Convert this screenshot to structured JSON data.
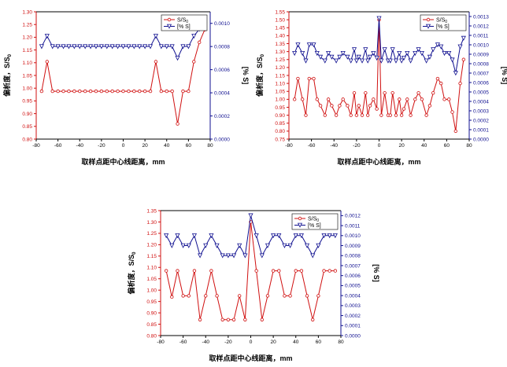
{
  "colors": {
    "red": "#d01010",
    "blue": "#101090",
    "axis": "#000000"
  },
  "chart_data": [
    {
      "type": "line",
      "xlabel": "取样点距中心线距离，mm",
      "ylabel_left": "偏析度，S/S",
      "ylabel_left_sub": "0",
      "ylabel_right": "[% S]",
      "xlim": [
        -80,
        80
      ],
      "xticks": [
        -80,
        -60,
        -40,
        -20,
        0,
        20,
        40,
        60,
        80
      ],
      "ylim_left": [
        0.8,
        1.3
      ],
      "yticks_left": [
        0.8,
        0.85,
        0.9,
        0.95,
        1.0,
        1.05,
        1.1,
        1.15,
        1.2,
        1.25,
        1.3
      ],
      "ylim_right": [
        0.0,
        0.0011
      ],
      "yticks_right": [
        0.0,
        0.0002,
        0.0004,
        0.0006,
        0.0008,
        0.001
      ],
      "legend": [
        "S/S0",
        "[% S]"
      ],
      "legend_position": "top-right",
      "x": [
        -75,
        -70,
        -65,
        -60,
        -55,
        -50,
        -45,
        -40,
        -35,
        -30,
        -25,
        -20,
        -15,
        -10,
        -5,
        0,
        5,
        10,
        15,
        20,
        25,
        30,
        35,
        40,
        45,
        50,
        55,
        60,
        65,
        70,
        75
      ],
      "series": [
        {
          "name": "S/S0",
          "axis": "left",
          "values": [
            0.988,
            1.104,
            0.988,
            0.988,
            0.988,
            0.988,
            0.988,
            0.988,
            0.988,
            0.988,
            0.988,
            0.988,
            0.988,
            0.988,
            0.988,
            0.988,
            0.988,
            0.988,
            0.988,
            0.988,
            0.988,
            1.104,
            0.988,
            0.988,
            0.988,
            0.86,
            0.988,
            0.988,
            1.104,
            1.18,
            1.23
          ]
        },
        {
          "name": "[% S]",
          "axis": "right",
          "values": [
            0.0008,
            0.00089,
            0.0008,
            0.0008,
            0.0008,
            0.0008,
            0.0008,
            0.0008,
            0.0008,
            0.0008,
            0.0008,
            0.0008,
            0.0008,
            0.0008,
            0.0008,
            0.0008,
            0.0008,
            0.0008,
            0.0008,
            0.0008,
            0.0008,
            0.00089,
            0.0008,
            0.0008,
            0.0008,
            0.0007,
            0.0008,
            0.0008,
            0.00089,
            0.00095,
            0.00099
          ]
        }
      ]
    },
    {
      "type": "line",
      "xlabel": "取样点距中心线距离，mm",
      "ylabel_left": "偏析度，S/S",
      "ylabel_left_sub": "0",
      "ylabel_right": "[% S]",
      "xlim": [
        -80,
        80
      ],
      "xticks": [
        -80,
        -60,
        -40,
        -20,
        0,
        20,
        40,
        60,
        80
      ],
      "ylim_left": [
        0.75,
        1.55
      ],
      "yticks_left": [
        0.75,
        0.8,
        0.85,
        0.9,
        0.95,
        1.0,
        1.05,
        1.1,
        1.15,
        1.2,
        1.25,
        1.3,
        1.35,
        1.4,
        1.45,
        1.5,
        1.55
      ],
      "ylim_right": [
        0.0,
        0.00135
      ],
      "yticks_right": [
        0.0,
        0.0001,
        0.0002,
        0.0003,
        0.0004,
        0.0005,
        0.0006,
        0.0007,
        0.0008,
        0.0009,
        0.001,
        0.0011,
        0.0012,
        0.0013
      ],
      "legend": [
        "S/S0",
        "[% S]"
      ],
      "legend_position": "top-right",
      "x": [
        -75,
        -72,
        -68,
        -65,
        -62,
        -58,
        -55,
        -52,
        -48,
        -45,
        -42,
        -38,
        -35,
        -32,
        -28,
        -25,
        -22,
        -20,
        -18,
        -15,
        -12,
        -10,
        -8,
        -5,
        -2,
        0,
        2,
        5,
        8,
        10,
        12,
        15,
        18,
        20,
        22,
        25,
        28,
        32,
        35,
        38,
        42,
        45,
        48,
        52,
        55,
        58,
        62,
        65,
        68,
        72,
        75
      ],
      "series": [
        {
          "name": "S/S0",
          "axis": "left",
          "values": [
            1.0,
            1.13,
            1.0,
            0.9,
            1.13,
            1.13,
            1.0,
            0.96,
            0.9,
            1.0,
            0.96,
            0.9,
            0.96,
            1.0,
            0.96,
            0.9,
            1.04,
            0.9,
            0.96,
            0.9,
            1.04,
            0.9,
            0.96,
            1.0,
            0.94,
            1.5,
            0.9,
            1.04,
            0.9,
            0.9,
            1.04,
            0.9,
            1.0,
            0.9,
            0.94,
            1.0,
            0.9,
            1.0,
            1.04,
            1.0,
            0.9,
            0.96,
            1.04,
            1.13,
            1.1,
            1.0,
            1.0,
            0.92,
            0.8,
            1.1,
            1.25
          ]
        },
        {
          "name": "[% S]",
          "axis": "right",
          "values": [
            0.00091,
            0.001,
            0.00091,
            0.00083,
            0.001,
            0.001,
            0.00091,
            0.00087,
            0.00083,
            0.00091,
            0.00087,
            0.00083,
            0.00087,
            0.00091,
            0.00087,
            0.00083,
            0.00095,
            0.00083,
            0.00087,
            0.00083,
            0.00095,
            0.00083,
            0.00087,
            0.00091,
            0.00086,
            0.00128,
            0.00083,
            0.00095,
            0.00083,
            0.00083,
            0.00095,
            0.00083,
            0.00091,
            0.00083,
            0.00086,
            0.00091,
            0.00083,
            0.00091,
            0.00095,
            0.00091,
            0.00083,
            0.00087,
            0.00095,
            0.001,
            0.00098,
            0.00091,
            0.00091,
            0.00084,
            0.0007,
            0.00098,
            0.00107
          ]
        }
      ]
    },
    {
      "type": "line",
      "xlabel": "取样点距中心线距离，mm",
      "ylabel_left": "偏析度，S/S",
      "ylabel_left_sub": "0",
      "ylabel_right": "[% S]",
      "xlim": [
        -80,
        80
      ],
      "xticks": [
        -80,
        -60,
        -40,
        -20,
        0,
        20,
        40,
        60,
        80
      ],
      "ylim_left": [
        0.8,
        1.35
      ],
      "yticks_left": [
        0.8,
        0.85,
        0.9,
        0.95,
        1.0,
        1.05,
        1.1,
        1.15,
        1.2,
        1.25,
        1.3,
        1.35
      ],
      "ylim_right": [
        0.0,
        0.00125
      ],
      "yticks_right": [
        0.0,
        0.0001,
        0.0002,
        0.0003,
        0.0004,
        0.0005,
        0.0006,
        0.0007,
        0.0008,
        0.0009,
        0.001,
        0.0011,
        0.0012
      ],
      "legend": [
        "S/S0",
        "[% S]"
      ],
      "legend_position": "top-right",
      "x": [
        -75,
        -70,
        -65,
        -60,
        -55,
        -50,
        -45,
        -40,
        -35,
        -30,
        -25,
        -20,
        -15,
        -10,
        -5,
        0,
        5,
        10,
        15,
        20,
        25,
        30,
        35,
        40,
        45,
        50,
        55,
        60,
        65,
        70,
        75
      ],
      "series": [
        {
          "name": "S/S0",
          "axis": "left",
          "values": [
            1.085,
            0.97,
            1.085,
            0.975,
            0.975,
            1.085,
            0.87,
            0.975,
            1.085,
            0.975,
            0.87,
            0.87,
            0.87,
            0.975,
            0.87,
            1.3,
            1.085,
            0.87,
            0.975,
            1.085,
            1.085,
            0.975,
            0.975,
            1.085,
            1.085,
            0.975,
            0.87,
            0.975,
            1.085,
            1.085,
            1.085
          ]
        },
        {
          "name": "[% S]",
          "axis": "right",
          "values": [
            0.001,
            0.0009,
            0.001,
            0.0009,
            0.0009,
            0.001,
            0.0008,
            0.0009,
            0.001,
            0.0009,
            0.0008,
            0.0008,
            0.0008,
            0.0009,
            0.0008,
            0.0012,
            0.001,
            0.0008,
            0.0009,
            0.001,
            0.001,
            0.0009,
            0.0009,
            0.001,
            0.001,
            0.0009,
            0.0008,
            0.0009,
            0.001,
            0.001,
            0.001
          ]
        }
      ]
    }
  ]
}
